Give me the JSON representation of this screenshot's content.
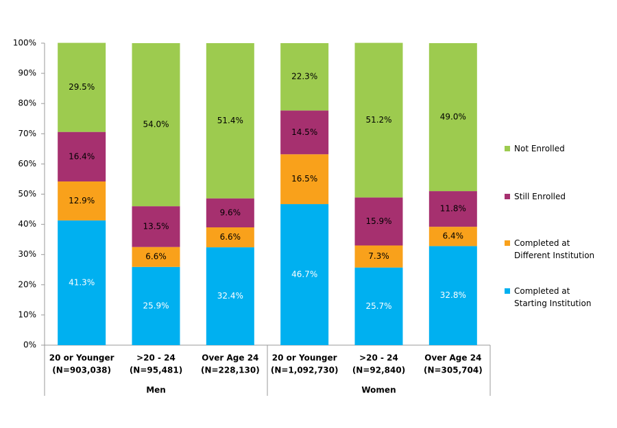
{
  "chart_data": {
    "type": "stacked_bar",
    "groups": [
      {
        "name": "Men",
        "categories": [
          [
            "20 or Younger",
            "(N=903,038)"
          ],
          [
            ">20 - 24",
            "(N=95,481)"
          ],
          [
            "Over Age 24",
            "(N=228,130)"
          ]
        ]
      },
      {
        "name": "Women",
        "categories": [
          [
            "20 or Younger",
            "(N=1,092,730)"
          ],
          [
            ">20 - 24",
            "(N=92,840)"
          ],
          [
            "Over Age 24",
            "(N=305,704)"
          ]
        ]
      }
    ],
    "series": [
      {
        "name": "Completed at\nStarting Institution",
        "color": "#00b0f0",
        "label_color": "#ffffff",
        "values": [
          41.3,
          25.9,
          32.4,
          46.7,
          25.7,
          32.8
        ],
        "value_labels": [
          "41.3%",
          "25.9%",
          "32.4%",
          "46.7%",
          "25.7%",
          "32.8%"
        ]
      },
      {
        "name": "Completed at\nDifferent Institution",
        "color": "#f9a11b",
        "label_color": "#000000",
        "values": [
          12.9,
          6.6,
          6.6,
          16.5,
          7.3,
          6.4
        ],
        "value_labels": [
          "12.9%",
          "6.6%",
          "6.6%",
          "16.5%",
          "7.3%",
          "6.4%"
        ]
      },
      {
        "name": "Still Enrolled",
        "color": "#a6306f",
        "label_color": "#000000",
        "values": [
          16.4,
          13.5,
          9.6,
          14.5,
          15.9,
          11.8
        ],
        "value_labels": [
          "16.4%",
          "13.5%",
          "9.6%",
          "14.5%",
          "15.9%",
          "11.8%"
        ]
      },
      {
        "name": "Not Enrolled",
        "color": "#9dcb4f",
        "label_color": "#000000",
        "values": [
          29.5,
          54.0,
          51.4,
          22.3,
          51.2,
          49.0
        ],
        "value_labels": [
          "29.5%",
          "54.0%",
          "51.4%",
          "22.3%",
          "51.2%",
          "49.0%"
        ]
      }
    ],
    "ylim": [
      0,
      100
    ],
    "yticks": [
      {
        "value": 0,
        "label": "0%"
      },
      {
        "value": 10,
        "label": "10%"
      },
      {
        "value": 20,
        "label": "20%"
      },
      {
        "value": 30,
        "label": "30%"
      },
      {
        "value": 40,
        "label": "40%"
      },
      {
        "value": 50,
        "label": "50%"
      },
      {
        "value": 60,
        "label": "60%"
      },
      {
        "value": 70,
        "label": "70%"
      },
      {
        "value": 80,
        "label": "80%"
      },
      {
        "value": 90,
        "label": "90%"
      },
      {
        "value": 100,
        "label": "100%"
      }
    ],
    "legend_position": "right"
  }
}
